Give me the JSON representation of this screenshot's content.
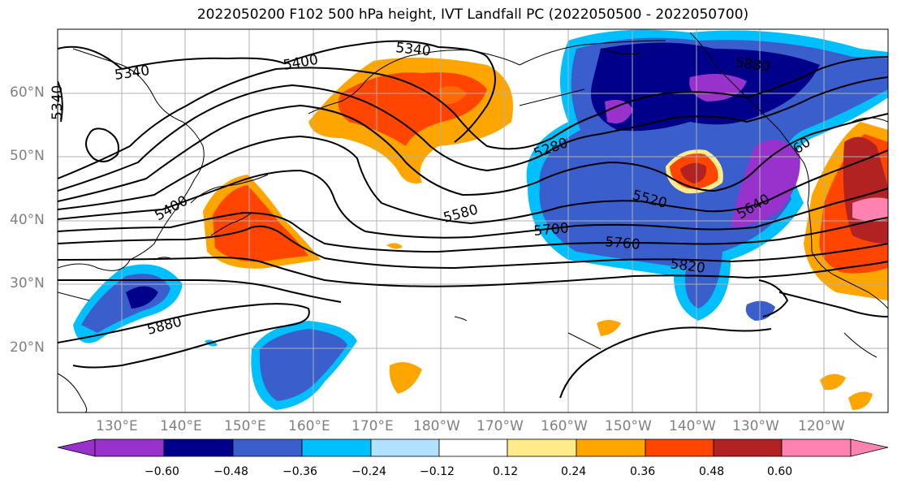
{
  "title": "2022050200 F102 500 hPa height, IVT Landfall PC (2022050500 - 2022050700)",
  "map": {
    "lat_labels": [
      "60°N",
      "50°N",
      "40°N",
      "30°N",
      "20°N"
    ],
    "lon_labels": [
      "130°E",
      "140°E",
      "150°E",
      "160°E",
      "170°E",
      "180°W",
      "170°W",
      "160°W",
      "150°W",
      "140°W",
      "130°W",
      "120°W"
    ],
    "contour_labels": [
      "5340",
      "5340",
      "5400",
      "5400",
      "5340",
      "5280",
      "5520",
      "5580",
      "5700",
      "5760",
      "5820",
      "5880",
      "5880",
      "5640",
      "60"
    ]
  },
  "colorbar": {
    "tick_labels": [
      "−0.60",
      "−0.48",
      "−0.36",
      "−0.24",
      "−0.12",
      "0.12",
      "0.24",
      "0.36",
      "0.48",
      "0.60"
    ],
    "colors": [
      "#9932cc",
      "#00008b",
      "#3a5fcd",
      "#00bfff",
      "#b0e2ff",
      "#ffffff",
      "#ffeb8a",
      "#ffa500",
      "#ff4500",
      "#b22222",
      "#ff83b0"
    ]
  }
}
